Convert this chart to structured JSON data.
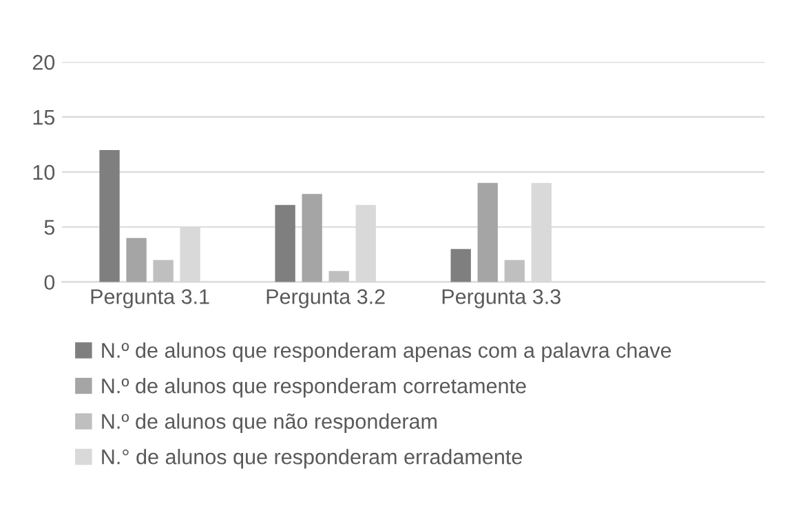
{
  "chart_data": {
    "type": "bar",
    "categories": [
      "Pergunta 3.1",
      "Pergunta 3.2",
      "Pergunta 3.3",
      null
    ],
    "series": [
      {
        "name": "N.º de alunos que responderam apenas com a palavra chave",
        "color": "#7f7f7f",
        "values": [
          12,
          7,
          3,
          null
        ]
      },
      {
        "name": "N.º de alunos que responderam corretamente",
        "color": "#a5a5a5",
        "values": [
          4,
          8,
          9,
          null
        ]
      },
      {
        "name": "N.º de alunos que não responderam",
        "color": "#bfbfbf",
        "values": [
          2,
          1,
          2,
          null
        ]
      },
      {
        "name": "N.° de alunos que responderam erradamente",
        "color": "#d9d9d9",
        "values": [
          5,
          7,
          9,
          null
        ]
      }
    ],
    "ylim": [
      0,
      20
    ],
    "yticks": [
      0,
      5,
      10,
      15,
      20
    ],
    "grid": "y",
    "legend": "bottom"
  }
}
